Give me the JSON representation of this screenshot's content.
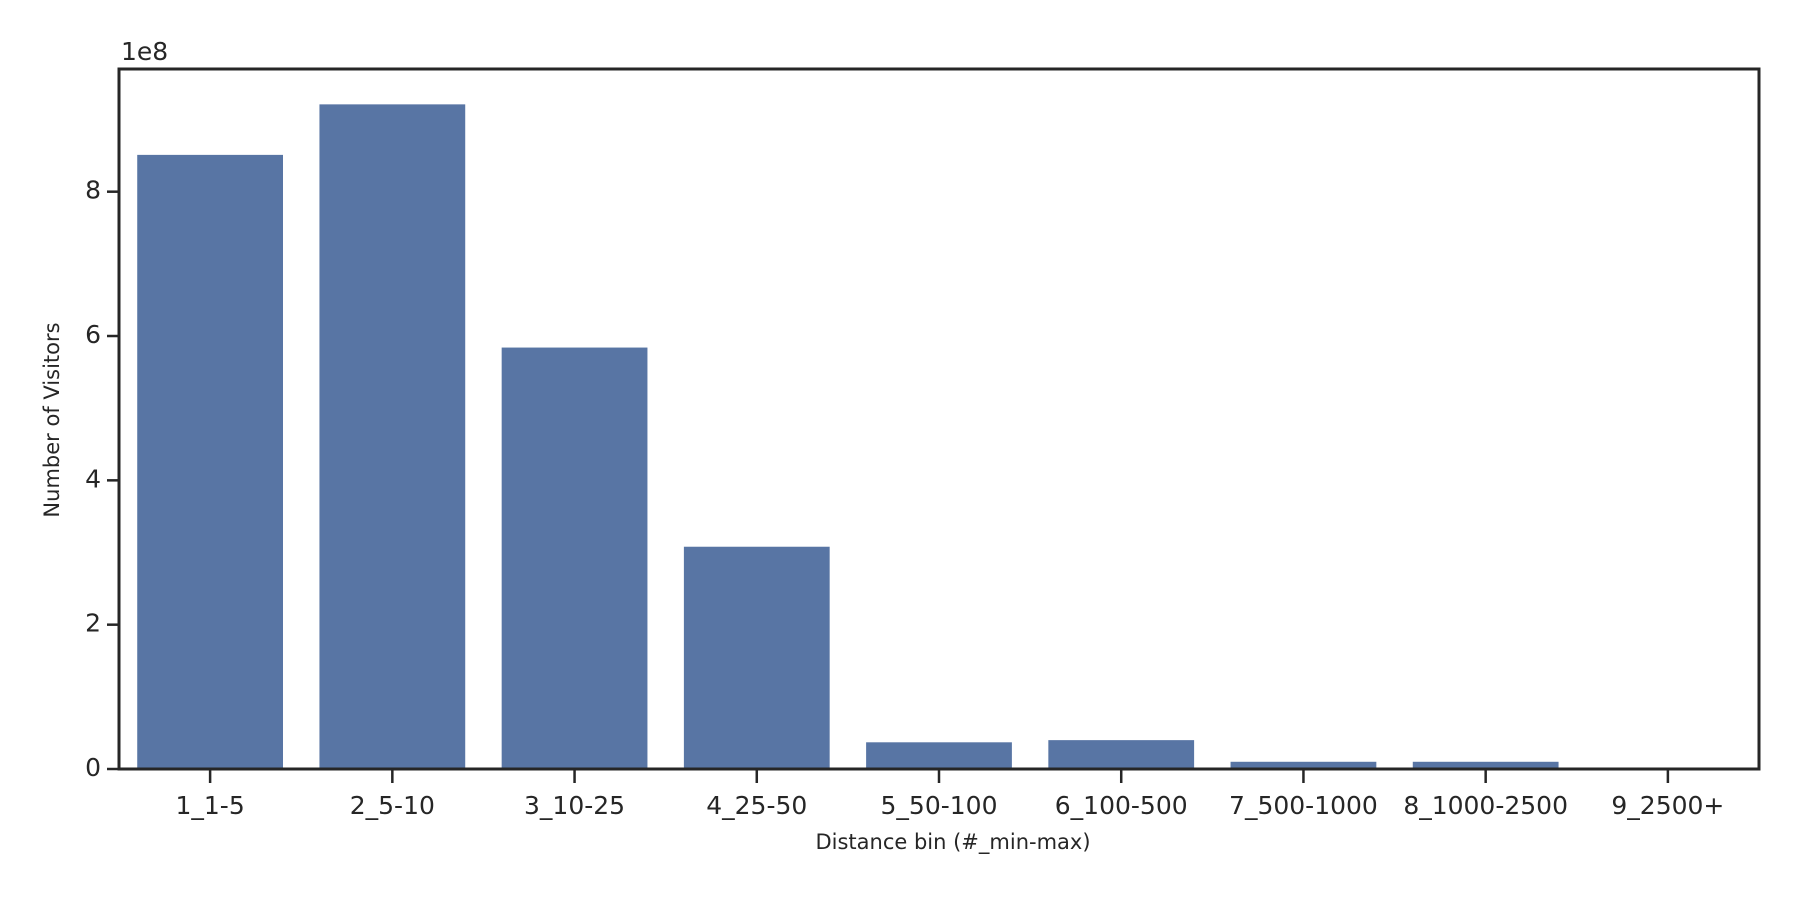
{
  "chart_data": {
    "type": "bar",
    "x_label": "Distance bin (#_min-max)",
    "y_label": "Number of Visitors",
    "y_offset_label": "1e8",
    "categories": [
      "1_1-5",
      "2_5-10",
      "3_10-25",
      "4_25-50",
      "5_50-100",
      "6_100-500",
      "7_500-1000",
      "8_1000-2500",
      "9_2500+"
    ],
    "values": [
      8.51,
      9.21,
      5.84,
      3.08,
      0.37,
      0.4,
      0.1,
      0.1,
      0.01
    ],
    "color": "#5875a4",
    "ylim": [
      0,
      9.7
    ],
    "yticks": [
      0,
      2,
      4,
      6,
      8
    ],
    "grid": false
  }
}
